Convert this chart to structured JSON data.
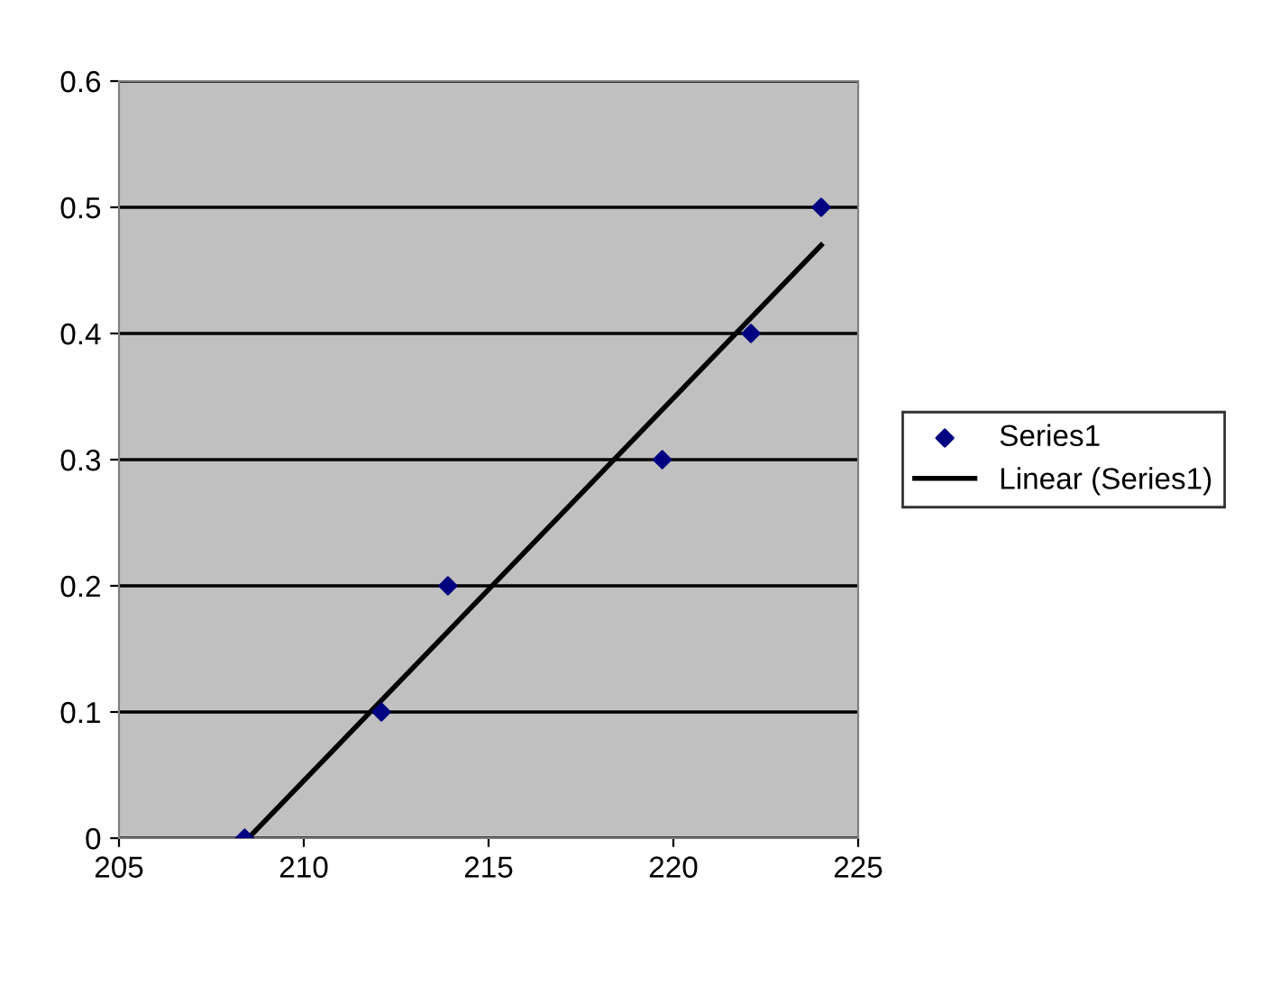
{
  "chart_data": {
    "type": "scatter",
    "series": [
      {
        "name": "Series1",
        "color": "#000080",
        "marker": "diamond",
        "x": [
          208.4,
          212.1,
          213.9,
          219.7,
          222.1,
          224.0
        ],
        "values": [
          0,
          0.1,
          0.2,
          0.3,
          0.4,
          0.5
        ]
      },
      {
        "name": "Linear (Series1)",
        "type": "line",
        "color": "#000000",
        "marker": "none",
        "line_style": "solid",
        "x": [
          208.5,
          224.0
        ],
        "values": [
          0.0,
          0.47
        ]
      }
    ],
    "xlim": [
      205,
      225
    ],
    "xticks": [
      205,
      210,
      215,
      220,
      225
    ],
    "ylim": [
      0,
      0.6
    ],
    "yticks": [
      0,
      0.1,
      0.2,
      0.3,
      0.4,
      0.5,
      0.6
    ],
    "grid": "y",
    "legend": "right"
  }
}
